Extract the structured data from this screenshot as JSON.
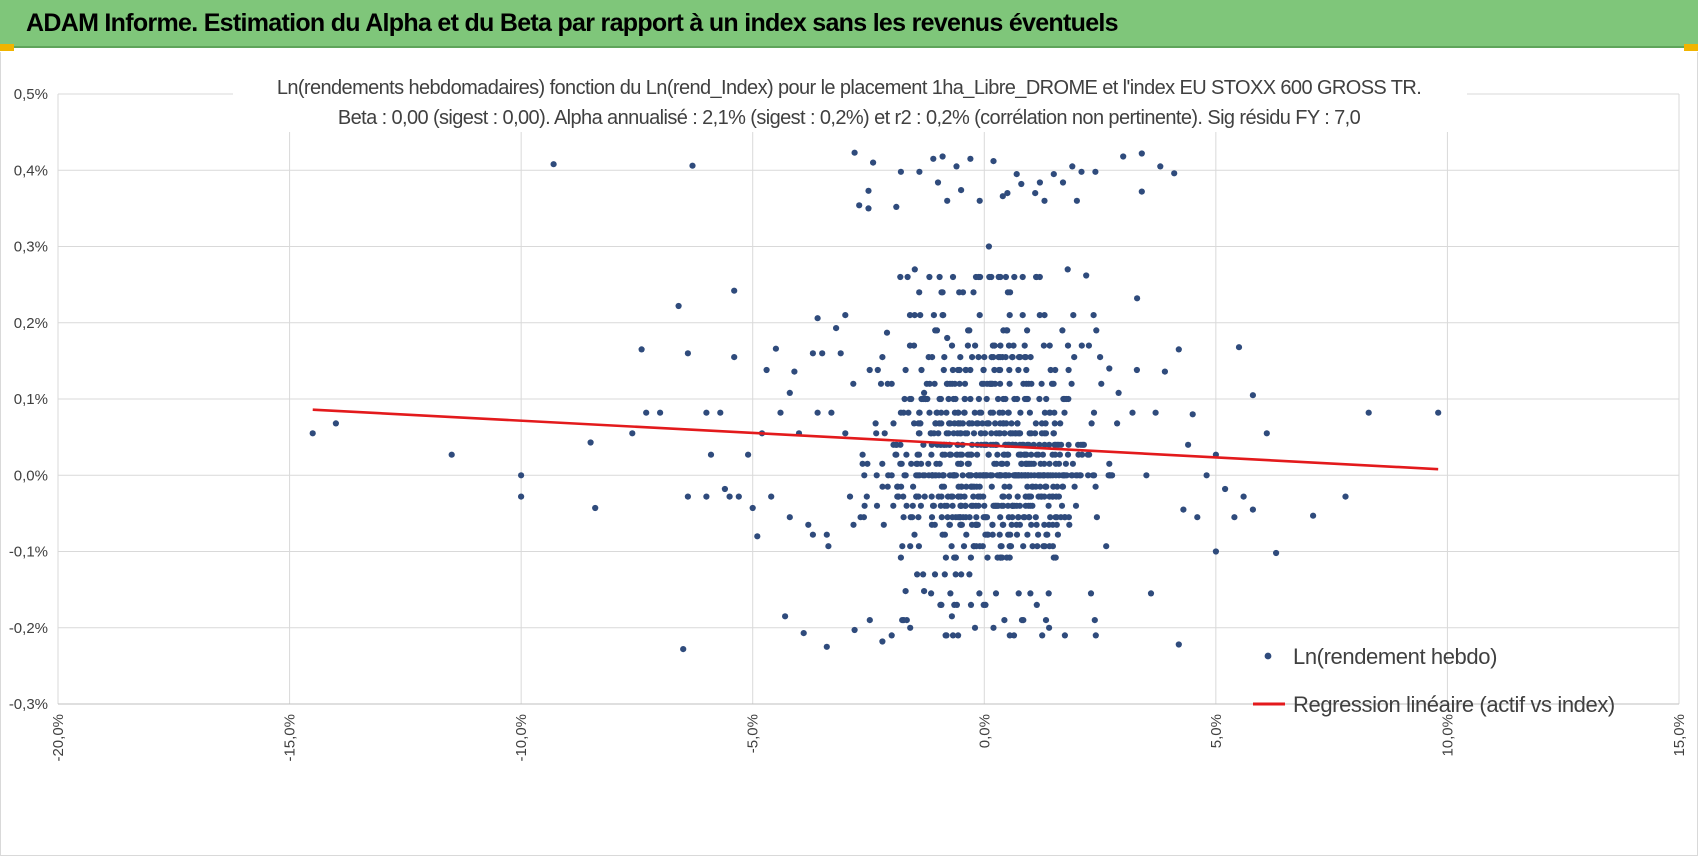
{
  "header": {
    "title": "ADAM Informe. Estimation du Alpha et du Beta par rapport à un index sans les revenus éventuels"
  },
  "colors": {
    "header_bg": "#7fc67a",
    "points": "#2f4b7c",
    "regression": "#e31a1c",
    "grid": "#d9d9d9",
    "handles": "#f0b400"
  },
  "chart_data": {
    "type": "scatter",
    "title": "Ln(rendements hebdomadaires) fonction du Ln(rend_Index) pour le placement 1ha_Libre_DROME et l'index EU STOXX 600 GROSS TR.",
    "subtitle": "Beta : 0,00 (sigest : 0,00). Alpha annualisé : 2,1% (sigest : 0,2%) et r2 : 0,2% (corrélation non pertinente). Sig résidu FY : 7,0",
    "xlabel": "",
    "ylabel": "",
    "xlim": [
      -20,
      15
    ],
    "ylim": [
      -0.3,
      0.5
    ],
    "x_unit": "%",
    "y_unit": "%",
    "x_ticks": [
      -20,
      -15,
      -10,
      -5,
      0,
      5,
      10,
      15
    ],
    "y_ticks": [
      -0.3,
      -0.2,
      -0.1,
      0.0,
      0.1,
      0.2,
      0.3,
      0.4,
      0.5
    ],
    "x_tick_labels": [
      "-20,0%",
      "-15,0%",
      "-10,0%",
      "-5,0%",
      "0,0%",
      "5,0%",
      "10,0%",
      "15,0%"
    ],
    "y_tick_labels": [
      "-0,3%",
      "-0,2%",
      "-0,1%",
      "0,0%",
      "0,1%",
      "0,2%",
      "0,3%",
      "0,4%",
      "0,5%"
    ],
    "grid": true,
    "legend_position": "bottom-right",
    "series": [
      {
        "name": "Ln(rendement hebdo)",
        "kind": "scatter",
        "points": [
          [
            -14.5,
            0.055
          ],
          [
            -14.0,
            0.068
          ],
          [
            -11.5,
            0.027
          ],
          [
            -10.0,
            0.0
          ],
          [
            -10.0,
            -0.028
          ],
          [
            -9.3,
            0.408
          ],
          [
            -8.5,
            0.043
          ],
          [
            -8.4,
            -0.043
          ],
          [
            -7.6,
            0.055
          ],
          [
            -7.4,
            0.165
          ],
          [
            -7.3,
            0.082
          ],
          [
            -7.0,
            0.082
          ],
          [
            -6.6,
            0.222
          ],
          [
            -6.5,
            -0.228
          ],
          [
            -6.4,
            0.16
          ],
          [
            -6.4,
            -0.028
          ],
          [
            -6.3,
            0.406
          ],
          [
            -6.0,
            0.082
          ],
          [
            -6.0,
            -0.028
          ],
          [
            -5.9,
            0.027
          ],
          [
            -5.7,
            0.082
          ],
          [
            -5.6,
            -0.018
          ],
          [
            -5.5,
            -0.028
          ],
          [
            -5.4,
            0.155
          ],
          [
            -5.4,
            0.242
          ],
          [
            -5.3,
            -0.028
          ],
          [
            -5.1,
            0.027
          ],
          [
            -5.0,
            -0.043
          ],
          [
            -4.9,
            -0.08
          ],
          [
            -4.8,
            0.055
          ],
          [
            -4.7,
            0.138
          ],
          [
            -4.6,
            -0.028
          ],
          [
            -4.5,
            0.166
          ],
          [
            -4.4,
            0.082
          ],
          [
            -4.3,
            -0.185
          ],
          [
            -4.2,
            0.108
          ],
          [
            -4.2,
            -0.055
          ],
          [
            -4.1,
            0.136
          ],
          [
            -4.0,
            0.055
          ],
          [
            -3.9,
            -0.207
          ],
          [
            -3.8,
            -0.065
          ],
          [
            -3.7,
            0.16
          ],
          [
            -3.7,
            -0.078
          ],
          [
            -3.6,
            0.082
          ],
          [
            -3.6,
            0.206
          ],
          [
            -3.5,
            0.16
          ],
          [
            -3.4,
            -0.225
          ],
          [
            -3.4,
            -0.078
          ],
          [
            -3.3,
            0.082
          ],
          [
            -3.2,
            0.193
          ],
          [
            -3.1,
            0.16
          ],
          [
            -3.0,
            0.055
          ],
          [
            -3.0,
            0.21
          ],
          [
            -2.9,
            -0.028
          ],
          [
            -2.8,
            0.423
          ],
          [
            -2.8,
            -0.203
          ],
          [
            -2.7,
            0.354
          ],
          [
            -2.6,
            -0.055
          ],
          [
            -2.5,
            0.373
          ],
          [
            -2.5,
            0.35
          ],
          [
            -2.4,
            0.41
          ],
          [
            -2.3,
            0.138
          ],
          [
            -2.2,
            0.155
          ],
          [
            -2.2,
            -0.218
          ],
          [
            -2.1,
            0.187
          ],
          [
            -2.0,
            0.0
          ],
          [
            -1.9,
            0.352
          ],
          [
            -1.8,
            0.398
          ],
          [
            -1.8,
            0.082
          ],
          [
            -1.8,
            -0.108
          ],
          [
            -1.7,
            -0.152
          ],
          [
            -1.6,
            -0.2
          ],
          [
            -1.5,
            0.27
          ],
          [
            -1.4,
            0.398
          ],
          [
            -1.3,
            0.108
          ],
          [
            -1.3,
            -0.152
          ],
          [
            -1.2,
            0.155
          ],
          [
            -1.1,
            0.415
          ],
          [
            -1.0,
            0.384
          ],
          [
            -0.9,
            0.418
          ],
          [
            -0.8,
            0.36
          ],
          [
            -0.8,
            0.18
          ],
          [
            -0.7,
            -0.185
          ],
          [
            -0.6,
            0.405
          ],
          [
            -0.5,
            0.374
          ],
          [
            -0.4,
            0.138
          ],
          [
            -0.3,
            0.415
          ],
          [
            -0.2,
            -0.2
          ],
          [
            -0.1,
            0.36
          ],
          [
            0.0,
            0.155
          ],
          [
            0.1,
            0.3
          ],
          [
            0.2,
            0.412
          ],
          [
            0.2,
            -0.2
          ],
          [
            0.4,
            0.366
          ],
          [
            0.5,
            0.37
          ],
          [
            0.6,
            0.155
          ],
          [
            0.7,
            0.395
          ],
          [
            0.8,
            0.382
          ],
          [
            1.0,
            0.155
          ],
          [
            1.1,
            0.37
          ],
          [
            1.2,
            0.384
          ],
          [
            1.3,
            0.36
          ],
          [
            1.4,
            -0.2
          ],
          [
            1.5,
            0.395
          ],
          [
            1.7,
            0.384
          ],
          [
            1.8,
            0.27
          ],
          [
            1.9,
            0.405
          ],
          [
            2.0,
            0.36
          ],
          [
            2.1,
            0.398
          ],
          [
            2.2,
            0.262
          ],
          [
            2.4,
            0.398
          ],
          [
            2.5,
            0.155
          ],
          [
            2.7,
            0.14
          ],
          [
            2.9,
            0.108
          ],
          [
            3.0,
            0.418
          ],
          [
            3.2,
            0.082
          ],
          [
            3.3,
            0.232
          ],
          [
            3.4,
            0.422
          ],
          [
            3.4,
            0.372
          ],
          [
            3.5,
            0.0
          ],
          [
            3.6,
            -0.155
          ],
          [
            3.7,
            0.082
          ],
          [
            3.8,
            0.405
          ],
          [
            3.9,
            0.136
          ],
          [
            4.1,
            0.396
          ],
          [
            4.2,
            0.165
          ],
          [
            4.2,
            -0.222
          ],
          [
            4.3,
            -0.045
          ],
          [
            4.4,
            0.04
          ],
          [
            4.5,
            0.08
          ],
          [
            4.6,
            -0.055
          ],
          [
            4.8,
            0.0
          ],
          [
            5.0,
            0.027
          ],
          [
            5.0,
            -0.1
          ],
          [
            5.2,
            -0.018
          ],
          [
            5.4,
            -0.055
          ],
          [
            5.5,
            0.168
          ],
          [
            5.6,
            -0.028
          ],
          [
            5.8,
            -0.045
          ],
          [
            5.8,
            0.105
          ],
          [
            6.1,
            0.055
          ],
          [
            6.3,
            -0.102
          ],
          [
            7.1,
            -0.053
          ],
          [
            7.8,
            -0.028
          ],
          [
            8.3,
            0.082
          ],
          [
            9.8,
            0.082
          ]
        ],
        "dense_core": {
          "note_hidden": false,
          "x_range": [
            -3.5,
            3.5
          ],
          "y_levels": [
            -0.21,
            -0.19,
            -0.17,
            -0.155,
            -0.13,
            -0.108,
            -0.093,
            -0.078,
            -0.065,
            -0.055,
            -0.04,
            -0.028,
            -0.015,
            0.0,
            0.015,
            0.027,
            0.04,
            0.055,
            0.068,
            0.082,
            0.1,
            0.12,
            0.138,
            0.155,
            0.17,
            0.19,
            0.21,
            0.24,
            0.26
          ],
          "count": 760
        }
      },
      {
        "name": "Regression linéaire (actif vs index)",
        "kind": "line",
        "points": [
          [
            -14.5,
            0.086
          ],
          [
            9.8,
            0.008
          ]
        ]
      }
    ]
  }
}
